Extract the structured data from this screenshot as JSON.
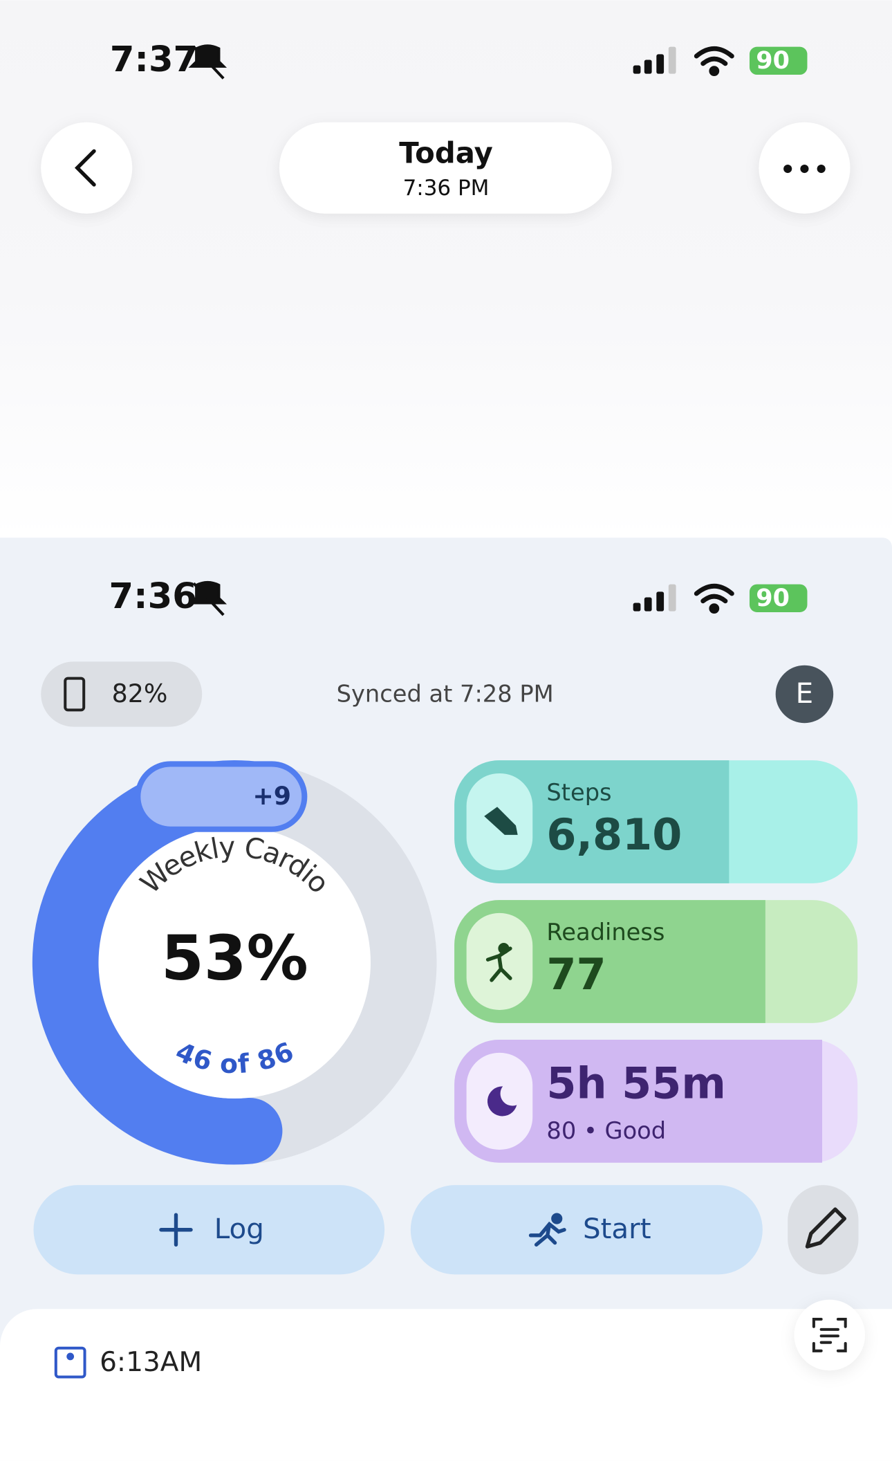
{
  "status_bar_top": {
    "time": "7:37",
    "battery": "90"
  },
  "header": {
    "title": "Today",
    "subtitle": "7:36 PM"
  },
  "status_bar_inner": {
    "time": "7:36",
    "battery": "90"
  },
  "sync_row": {
    "device_battery": "82%",
    "synced": "Synced at 7:28 PM",
    "avatar": "E"
  },
  "cardio": {
    "label": "Weekly Cardio",
    "percent": "53%",
    "detail": "46 of 86",
    "bonus": "+9"
  },
  "tiles": [
    {
      "label": "Steps",
      "value": "6,810"
    },
    {
      "label": "Readiness",
      "value": "77"
    },
    {
      "value": "5h 55m",
      "detail": "80 • Good"
    }
  ],
  "actions": {
    "log": "Log",
    "start": "Start"
  },
  "entry": {
    "time": "6:13AM"
  }
}
